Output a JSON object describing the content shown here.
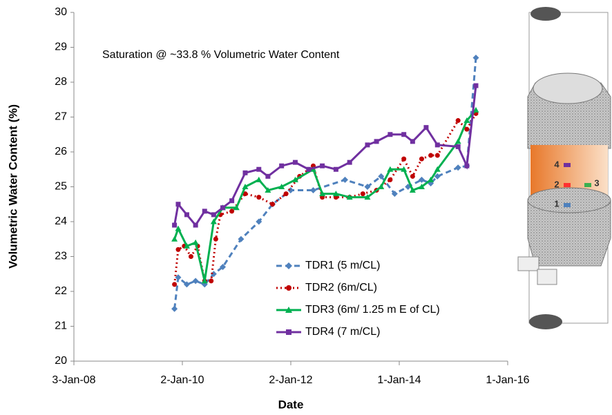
{
  "chart_data": {
    "type": "line",
    "annotation": "Saturation @ ~33.8 % Volumetric Water Content",
    "xlabel": "Date",
    "ylabel": "Volumetric Water Content (%)",
    "xlim": [
      "2008-01-03",
      "2016-01-01"
    ],
    "xticks": [
      {
        "value": "2008-01-03",
        "label": "3-Jan-08"
      },
      {
        "value": "2010-01-02",
        "label": "2-Jan-10"
      },
      {
        "value": "2012-01-02",
        "label": "2-Jan-12"
      },
      {
        "value": "2014-01-01",
        "label": "1-Jan-14"
      },
      {
        "value": "2016-01-01",
        "label": "1-Jan-16"
      }
    ],
    "ylim": [
      20,
      30
    ],
    "yticks": [
      20,
      21,
      22,
      23,
      24,
      25,
      26,
      27,
      28,
      29,
      30
    ],
    "legend": "lower center",
    "series": [
      {
        "name": "TDR1 (5 m/CL)",
        "color": "#4f81bd",
        "dash": "dashed",
        "marker": "diamond",
        "x": [
          "2009-11-10",
          "2009-12-05",
          "2010-02-01",
          "2010-04-01",
          "2010-06-01",
          "2010-08-01",
          "2010-10-01",
          "2011-02-01",
          "2011-06-01",
          "2011-09-01",
          "2012-01-01",
          "2012-06-01",
          "2013-01-01",
          "2013-06-01",
          "2013-09-01",
          "2013-12-01",
          "2014-03-01",
          "2014-06-01",
          "2014-08-01",
          "2014-09-15",
          "2015-02-01",
          "2015-04-01",
          "2015-06-01"
        ],
        "values": [
          21.5,
          22.4,
          22.2,
          22.3,
          22.2,
          22.5,
          22.7,
          23.5,
          24.0,
          24.5,
          24.9,
          24.9,
          25.2,
          25.0,
          25.3,
          24.8,
          25.0,
          25.2,
          25.1,
          25.3,
          25.55,
          25.6,
          28.7
        ]
      },
      {
        "name": "TDR2 (6m/CL)",
        "color": "#c00000",
        "dash": "dotted",
        "marker": "circle",
        "x": [
          "2009-11-10",
          "2009-12-05",
          "2010-01-15",
          "2010-03-01",
          "2010-04-15",
          "2010-06-01",
          "2010-07-15",
          "2010-08-15",
          "2010-09-15",
          "2010-12-01",
          "2011-03-01",
          "2011-06-01",
          "2011-09-01",
          "2011-12-01",
          "2012-03-01",
          "2012-06-01",
          "2012-08-01",
          "2012-11-01",
          "2013-02-01",
          "2013-05-01",
          "2013-08-01",
          "2013-11-01",
          "2014-02-01",
          "2014-04-01",
          "2014-06-01",
          "2014-08-01",
          "2014-09-15",
          "2015-02-01",
          "2015-04-01",
          "2015-06-01"
        ],
        "values": [
          22.2,
          23.2,
          23.3,
          23.0,
          23.3,
          22.3,
          22.3,
          23.5,
          24.2,
          24.3,
          24.8,
          24.7,
          24.5,
          24.8,
          25.3,
          25.6,
          24.7,
          24.7,
          24.7,
          24.8,
          24.9,
          25.2,
          25.8,
          25.3,
          25.8,
          25.9,
          25.9,
          26.9,
          26.65,
          27.1
        ]
      },
      {
        "name": "TDR3 (6m/ 1.25 m E of CL)",
        "color": "#00b050",
        "dash": "solid",
        "marker": "triangle",
        "x": [
          "2009-11-10",
          "2009-12-05",
          "2010-02-01",
          "2010-04-01",
          "2010-06-01",
          "2010-08-01",
          "2010-10-01",
          "2011-01-01",
          "2011-03-01",
          "2011-06-01",
          "2011-08-01",
          "2011-11-01",
          "2012-02-01",
          "2012-06-01",
          "2012-08-01",
          "2012-11-01",
          "2013-02-01",
          "2013-06-01",
          "2013-09-01",
          "2013-11-01",
          "2014-02-01",
          "2014-04-01",
          "2014-06-01",
          "2014-08-01",
          "2014-09-15",
          "2015-02-01",
          "2015-04-01",
          "2015-06-01"
        ],
        "values": [
          23.5,
          23.8,
          23.3,
          23.4,
          22.3,
          24.0,
          24.4,
          24.4,
          25.0,
          25.2,
          24.9,
          25.0,
          25.2,
          25.5,
          24.8,
          24.8,
          24.7,
          24.7,
          25.0,
          25.5,
          25.5,
          24.9,
          25.0,
          25.2,
          25.5,
          26.3,
          26.9,
          27.2
        ]
      },
      {
        "name": "TDR4 (7 m/CL)",
        "color": "#7030a0",
        "dash": "solid",
        "marker": "square",
        "x": [
          "2009-11-10",
          "2009-12-05",
          "2010-02-01",
          "2010-04-01",
          "2010-06-01",
          "2010-08-01",
          "2010-10-01",
          "2010-12-01",
          "2011-03-01",
          "2011-06-01",
          "2011-08-01",
          "2011-11-01",
          "2012-02-01",
          "2012-05-01",
          "2012-08-01",
          "2012-11-01",
          "2013-02-01",
          "2013-06-01",
          "2013-08-01",
          "2013-11-01",
          "2014-02-01",
          "2014-04-01",
          "2014-07-01",
          "2014-09-15",
          "2015-02-01",
          "2015-04-01",
          "2015-06-01"
        ],
        "values": [
          23.9,
          24.5,
          24.2,
          23.9,
          24.3,
          24.2,
          24.4,
          24.6,
          25.4,
          25.5,
          25.3,
          25.6,
          25.7,
          25.5,
          25.6,
          25.5,
          25.7,
          26.2,
          26.3,
          26.5,
          26.5,
          26.3,
          26.7,
          26.2,
          26.15,
          25.6,
          27.9
        ]
      }
    ]
  },
  "diagram": {
    "labels": [
      "4",
      "2",
      "3",
      "1"
    ]
  }
}
